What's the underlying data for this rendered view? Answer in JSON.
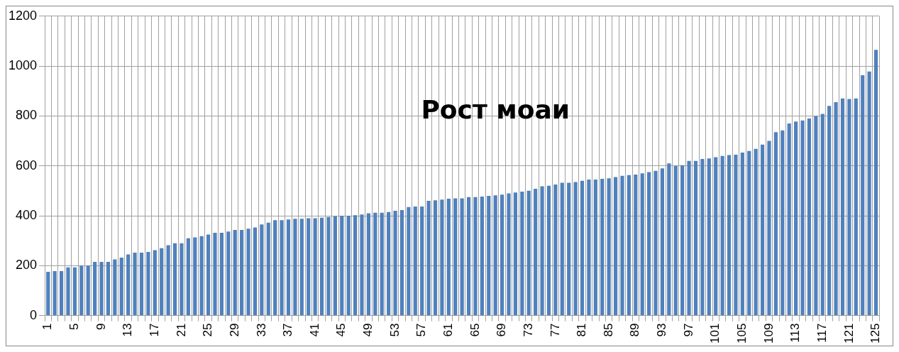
{
  "chart_data": {
    "type": "bar",
    "title": "Рост моаи",
    "categories": [
      "1",
      null,
      null,
      null,
      "5",
      null,
      null,
      null,
      "9",
      null,
      null,
      null,
      "13",
      null,
      null,
      null,
      "17",
      null,
      null,
      null,
      "21",
      null,
      null,
      null,
      "25",
      null,
      null,
      null,
      "29",
      null,
      null,
      null,
      "33",
      null,
      null,
      null,
      "37",
      null,
      null,
      null,
      "41",
      null,
      null,
      null,
      "45",
      null,
      null,
      null,
      "49",
      null,
      null,
      null,
      "53",
      null,
      null,
      null,
      "57",
      null,
      null,
      null,
      "61",
      null,
      null,
      null,
      "65",
      null,
      null,
      null,
      "69",
      null,
      null,
      null,
      "73",
      null,
      null,
      null,
      "77",
      null,
      null,
      null,
      "81",
      null,
      null,
      null,
      "85",
      null,
      null,
      null,
      "89",
      null,
      null,
      null,
      "93",
      null,
      null,
      null,
      "97",
      null,
      null,
      null,
      "101",
      null,
      null,
      null,
      "105",
      null,
      null,
      null,
      "109",
      null,
      null,
      null,
      "113",
      null,
      null,
      null,
      "117",
      null,
      null,
      null,
      "121",
      null,
      null,
      null,
      "125"
    ],
    "values": [
      175,
      178,
      178,
      193,
      193,
      200,
      200,
      215,
      215,
      215,
      225,
      232,
      245,
      252,
      252,
      255,
      262,
      270,
      282,
      290,
      290,
      310,
      313,
      318,
      325,
      332,
      332,
      337,
      343,
      343,
      348,
      353,
      365,
      372,
      382,
      382,
      385,
      388,
      388,
      390,
      390,
      392,
      395,
      398,
      400,
      400,
      402,
      405,
      410,
      412,
      412,
      415,
      420,
      423,
      435,
      437,
      437,
      460,
      462,
      465,
      468,
      470,
      470,
      475,
      475,
      477,
      480,
      482,
      485,
      490,
      493,
      497,
      500,
      508,
      518,
      520,
      525,
      532,
      532,
      535,
      540,
      545,
      545,
      548,
      550,
      555,
      560,
      563,
      565,
      570,
      575,
      580,
      590,
      610,
      600,
      603,
      620,
      620,
      628,
      630,
      635,
      640,
      643,
      645,
      653,
      660,
      668,
      685,
      700,
      735,
      742,
      770,
      778,
      782,
      790,
      800,
      808,
      840,
      855,
      870,
      868,
      870,
      963,
      978,
      1065
    ],
    "color": "#4f81bd",
    "ylim": [
      0,
      1200
    ],
    "yticks": [
      0,
      200,
      400,
      600,
      800,
      1000,
      1200
    ],
    "grid": true,
    "legend": false
  }
}
